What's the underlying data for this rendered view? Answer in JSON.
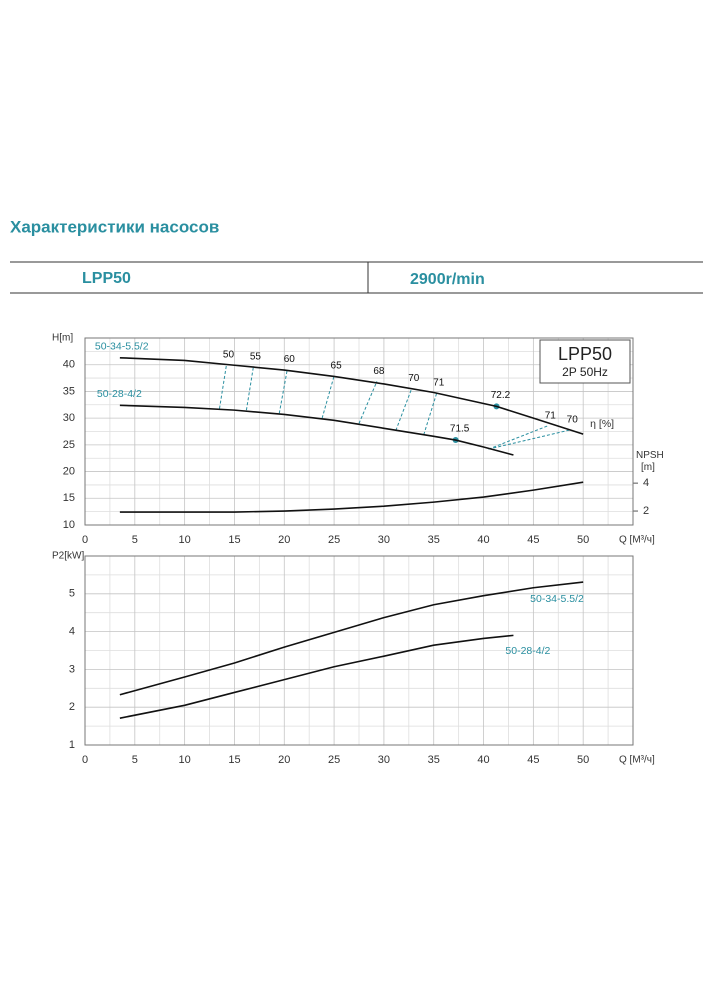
{
  "header": {
    "title": "Характеристики насосов",
    "model": "LPP50",
    "speed": "2900r/min"
  },
  "chart_data": [
    {
      "type": "line",
      "ylabel": "H[m]",
      "xlabel": "Q [M³/ч]",
      "y2label": [
        "NPSH",
        "[m]"
      ],
      "box": [
        "LPP50",
        "2P  50Hz"
      ],
      "xlim": [
        0,
        55
      ],
      "xticks": [
        0,
        5,
        10,
        15,
        20,
        25,
        30,
        35,
        40,
        45,
        50
      ],
      "ylim": [
        10,
        45
      ],
      "yticks": [
        10,
        15,
        20,
        25,
        30,
        35,
        40
      ],
      "y2lim": [
        1,
        14.4
      ],
      "y2ticks": [
        2,
        4
      ],
      "grid": true,
      "name_color": "#2a8fa0",
      "series": [
        {
          "name": "50-34-5.5/2",
          "color": "#111111",
          "x": [
            3.5,
            10,
            15,
            20,
            25,
            30,
            35,
            41.3,
            45,
            50
          ],
          "values": [
            41.3,
            40.8,
            39.9,
            39.0,
            37.8,
            36.4,
            34.8,
            32.2,
            30.0,
            27.0
          ]
        },
        {
          "name": "50-28-4/2",
          "color": "#111111",
          "x": [
            3.5,
            10,
            15,
            20,
            25,
            30,
            35,
            37.2,
            40,
            43
          ],
          "values": [
            32.4,
            32.0,
            31.5,
            30.7,
            29.6,
            28.1,
            26.6,
            25.9,
            24.6,
            23.1
          ]
        },
        {
          "color": "#111111",
          "axis": "y2",
          "x": [
            3.5,
            10,
            15,
            20,
            25,
            30,
            35,
            40,
            45,
            50
          ],
          "values": [
            1.93,
            1.93,
            1.93,
            2.0,
            2.14,
            2.35,
            2.64,
            3.0,
            3.5,
            4.07
          ]
        }
      ],
      "efficiency": {
        "label": "η [%]",
        "color": "#2a8fa0",
        "lines": [
          {
            "label": "50",
            "x": [
              13.5,
              14.2
            ],
            "y": [
              31.8,
              40.0
            ]
          },
          {
            "label": "55",
            "x": [
              16.2,
              16.9
            ],
            "y": [
              31.5,
              39.6
            ]
          },
          {
            "label": "60",
            "x": [
              19.5,
              20.3
            ],
            "y": [
              30.9,
              39.1
            ]
          },
          {
            "label": "65",
            "x": [
              23.8,
              25.0
            ],
            "y": [
              30.0,
              37.9
            ]
          },
          {
            "label": "68",
            "x": [
              27.5,
              29.3
            ],
            "y": [
              29.0,
              36.9
            ]
          },
          {
            "label": "70",
            "x": [
              31.2,
              32.8
            ],
            "y": [
              27.7,
              35.6
            ]
          },
          {
            "label": "71",
            "x": [
              34.0,
              35.3
            ],
            "y": [
              26.9,
              34.7
            ]
          },
          {
            "label": "71",
            "x": [
              40.5,
              46.5
            ],
            "y": [
              24.2,
              28.6
            ]
          },
          {
            "label": "70",
            "x": [
              40.5,
              48.7
            ],
            "y": [
              24.2,
              27.8
            ]
          }
        ],
        "best_points": [
          {
            "label": "72.2",
            "x": 41.3,
            "y": 32.2
          },
          {
            "label": "71.5",
            "x": 37.2,
            "y": 25.9
          }
        ]
      }
    },
    {
      "type": "line",
      "ylabel": "P2[kW]",
      "xlabel": "Q [M³/ч]",
      "xlim": [
        0,
        55
      ],
      "xticks": [
        0,
        5,
        10,
        15,
        20,
        25,
        30,
        35,
        40,
        45,
        50
      ],
      "ylim": [
        1,
        6
      ],
      "yticks": [
        1,
        2,
        3,
        4,
        5
      ],
      "grid": true,
      "name_color": "#2a8fa0",
      "series": [
        {
          "name": "50-34-5.5/2",
          "color": "#111111",
          "x": [
            3.5,
            10,
            15,
            20,
            25,
            30,
            35,
            40,
            45,
            50
          ],
          "values": [
            2.33,
            2.8,
            3.17,
            3.59,
            3.98,
            4.37,
            4.71,
            4.95,
            5.16,
            5.31
          ]
        },
        {
          "name": "50-28-4/2",
          "color": "#111111",
          "x": [
            3.5,
            10,
            15,
            20,
            25,
            30,
            35,
            40,
            43
          ],
          "values": [
            1.71,
            2.05,
            2.39,
            2.73,
            3.07,
            3.35,
            3.64,
            3.82,
            3.9
          ]
        }
      ]
    }
  ]
}
